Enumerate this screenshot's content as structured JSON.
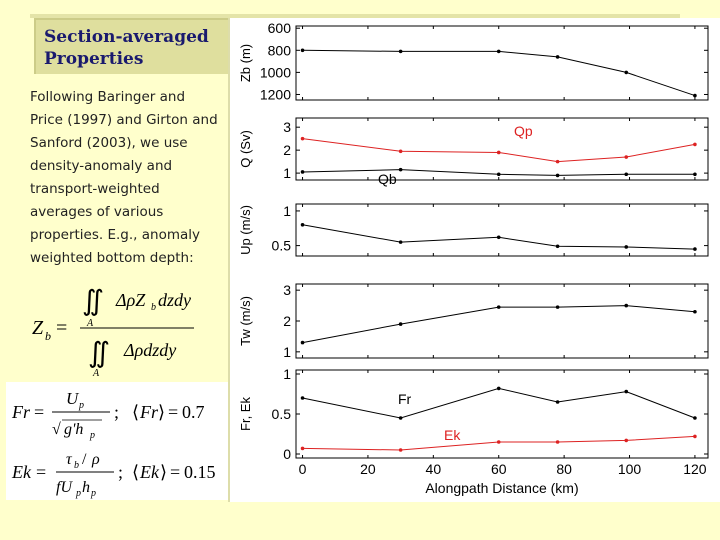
{
  "slide": {
    "title_line1": "Section-averaged",
    "title_line2": "Properties",
    "body_lines": [
      "Following Baringer and",
      "Price (1997) and Girton and",
      "Sanford (2003), we use",
      "density-anomaly and",
      "transport-weighted",
      "averages of various",
      "properties. E.g., anomaly",
      "weighted bottom depth:"
    ],
    "fr_mean": "0.7",
    "ek_mean": "0.15"
  },
  "chart_data": [
    {
      "type": "line",
      "ylabel": "Zb (m)",
      "ylim": [
        1250,
        580
      ],
      "yticks": [
        "600",
        "800",
        "1000",
        "1200"
      ],
      "series": [
        {
          "color": "#000000",
          "x": [
            0,
            30,
            60,
            78,
            99,
            120
          ],
          "values": [
            800,
            810,
            810,
            860,
            1000,
            1210
          ]
        }
      ]
    },
    {
      "type": "line",
      "ylabel": "Q (Sv)",
      "ylim": [
        0.7,
        3.4
      ],
      "yticks": [
        "1",
        "2",
        "3"
      ],
      "annotations": [
        "Qp",
        "Qb"
      ],
      "series": [
        {
          "name": "Qp",
          "color": "#dd2222",
          "x": [
            0,
            30,
            60,
            78,
            99,
            120
          ],
          "values": [
            2.5,
            1.95,
            1.9,
            1.5,
            1.7,
            2.25
          ]
        },
        {
          "name": "Qb",
          "color": "#000000",
          "x": [
            0,
            30,
            60,
            78,
            99,
            120
          ],
          "values": [
            1.05,
            1.15,
            0.95,
            0.9,
            0.95,
            0.95
          ]
        }
      ]
    },
    {
      "type": "line",
      "ylabel": "Up (m/s)",
      "ylim": [
        0.35,
        1.1
      ],
      "yticks": [
        "0.5",
        "1"
      ],
      "series": [
        {
          "color": "#000000",
          "x": [
            0,
            30,
            60,
            78,
            99,
            120
          ],
          "values": [
            0.8,
            0.55,
            0.62,
            0.49,
            0.48,
            0.45
          ]
        }
      ]
    },
    {
      "type": "line",
      "ylabel": "Tw (m/s)",
      "ylim": [
        0.8,
        3.2
      ],
      "yticks": [
        "1",
        "2",
        "3"
      ],
      "series": [
        {
          "color": "#000000",
          "x": [
            0,
            30,
            60,
            78,
            99,
            120
          ],
          "values": [
            1.3,
            1.9,
            2.45,
            2.45,
            2.5,
            2.3
          ]
        }
      ]
    },
    {
      "type": "line",
      "ylabel": "Fr, Ek",
      "ylim": [
        -0.05,
        1.05
      ],
      "yticks": [
        "0",
        "0.5",
        "1"
      ],
      "xlabel": "Alongpath Distance (km)",
      "xlim": [
        -2,
        124
      ],
      "xticks": [
        "0",
        "20",
        "40",
        "60",
        "80",
        "100",
        "120"
      ],
      "annotations": [
        "Fr",
        "Ek"
      ],
      "series": [
        {
          "name": "Fr",
          "color": "#000000",
          "x": [
            0,
            30,
            60,
            78,
            99,
            120
          ],
          "values": [
            0.7,
            0.45,
            0.82,
            0.65,
            0.78,
            0.45
          ]
        },
        {
          "name": "Ek",
          "color": "#dd2222",
          "x": [
            0,
            30,
            60,
            78,
            99,
            120
          ],
          "values": [
            0.07,
            0.05,
            0.15,
            0.15,
            0.17,
            0.22
          ]
        }
      ]
    }
  ]
}
